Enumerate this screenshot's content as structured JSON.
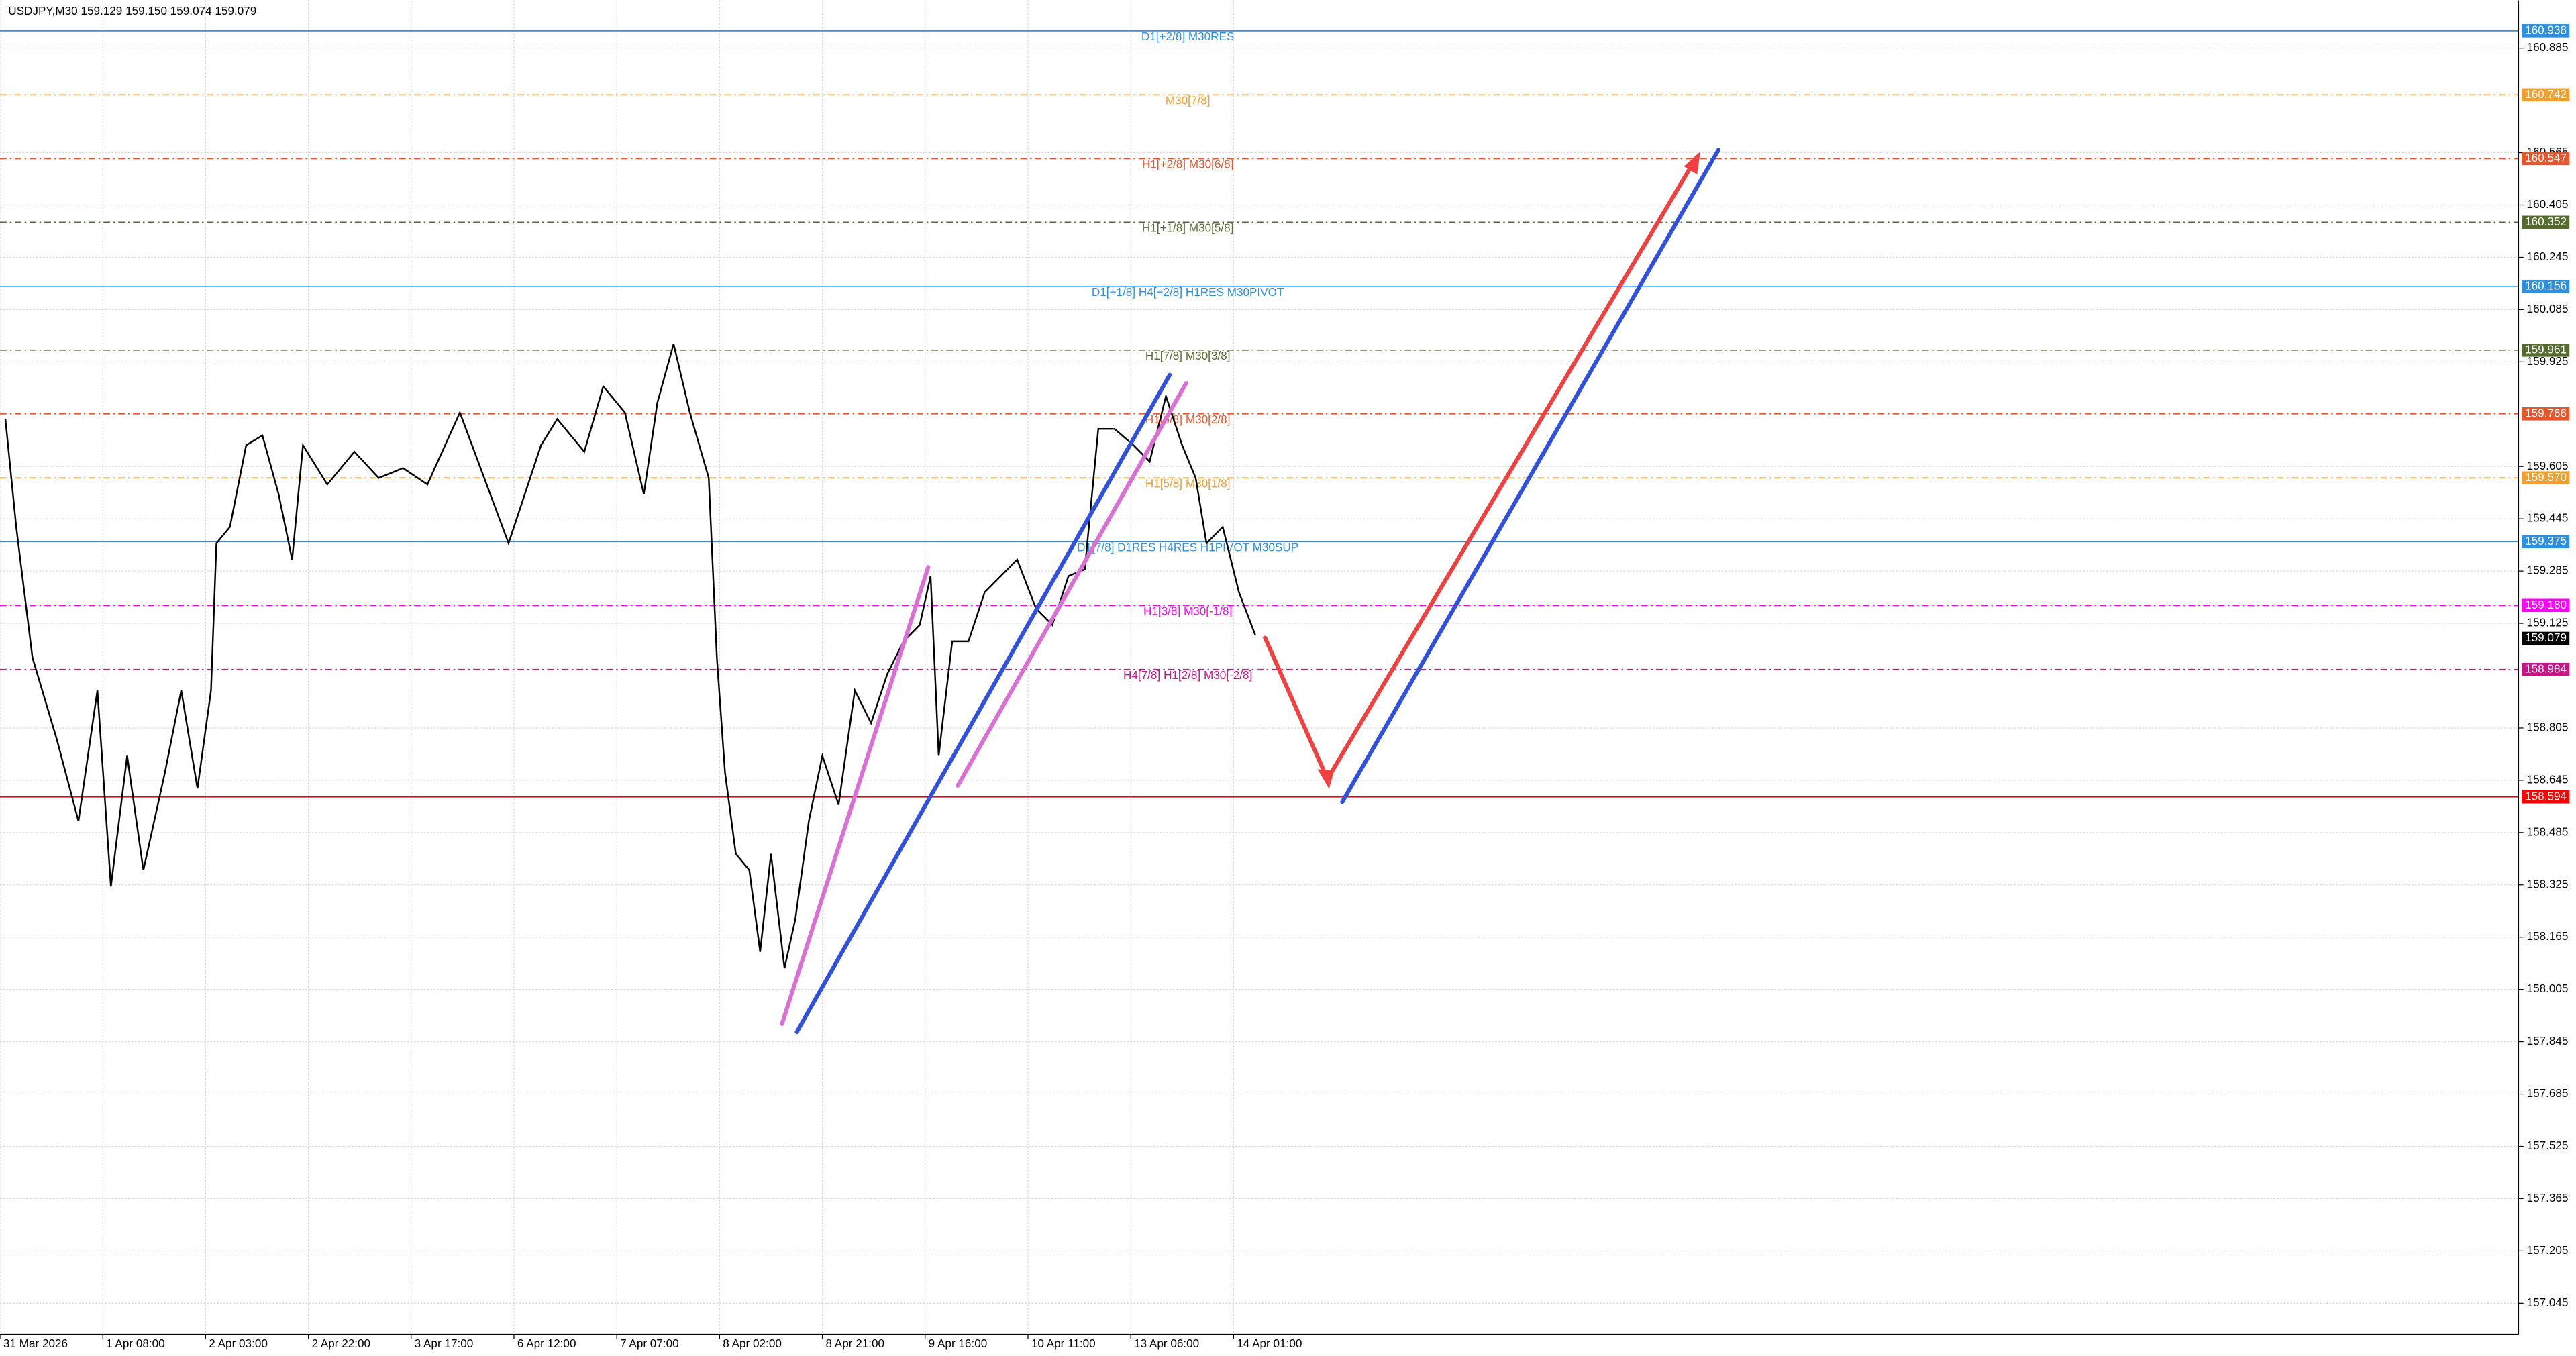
{
  "chart_data": {
    "type": "line",
    "title": "USDJPY,M30  159.129 159.150 159.074 159.079",
    "color": "#000000",
    "x": [
      2,
      6,
      12,
      21,
      29,
      36,
      41,
      47,
      53,
      61,
      67,
      73,
      78,
      80,
      85,
      91,
      97,
      103,
      108,
      112,
      121,
      131,
      140,
      149,
      158,
      170,
      179,
      188,
      194,
      200,
      206,
      216,
      223,
      231,
      238,
      243,
      249,
      255,
      262,
      265,
      268,
      272,
      277,
      281,
      285,
      290,
      294,
      299,
      304,
      310,
      316,
      322,
      328,
      334,
      340,
      344,
      347,
      352,
      358,
      364,
      370,
      376,
      383,
      389,
      395,
      401,
      406,
      412,
      419,
      425,
      431,
      437,
      442,
      446,
      452,
      458,
      464
    ],
    "values": [
      159.75,
      159.42,
      159.02,
      158.77,
      158.52,
      158.92,
      158.32,
      158.72,
      158.37,
      158.67,
      158.92,
      158.62,
      158.92,
      159.37,
      159.42,
      159.67,
      159.7,
      159.52,
      159.32,
      159.67,
      159.55,
      159.65,
      159.57,
      159.6,
      159.55,
      159.77,
      159.57,
      159.37,
      159.52,
      159.67,
      159.75,
      159.65,
      159.85,
      159.77,
      159.52,
      159.8,
      159.98,
      159.77,
      159.57,
      159.02,
      158.67,
      158.42,
      158.37,
      158.12,
      158.42,
      158.07,
      158.22,
      158.52,
      158.72,
      158.57,
      158.92,
      158.82,
      158.97,
      159.07,
      159.12,
      159.27,
      158.72,
      159.07,
      159.07,
      159.22,
      159.27,
      159.32,
      159.17,
      159.12,
      159.27,
      159.29,
      159.72,
      159.72,
      159.67,
      159.62,
      159.82,
      159.67,
      159.57,
      159.37,
      159.42,
      159.22,
      159.09
    ],
    "xlim": [
      0,
      931
    ],
    "xticks": [
      {
        "value": 0,
        "label": "31 Mar 2026"
      },
      {
        "value": 38,
        "label": "1 Apr 08:00"
      },
      {
        "value": 76,
        "label": "2 Apr 03:00"
      },
      {
        "value": 114,
        "label": "2 Apr 22:00"
      },
      {
        "value": 152,
        "label": "3 Apr 17:00"
      },
      {
        "value": 190,
        "label": "6 Apr 12:00"
      },
      {
        "value": 228,
        "label": "7 Apr 07:00"
      },
      {
        "value": 266,
        "label": "8 Apr 02:00"
      },
      {
        "value": 304,
        "label": "8 Apr 21:00"
      },
      {
        "value": 342,
        "label": "9 Apr 16:00"
      },
      {
        "value": 380,
        "label": "10 Apr 11:00"
      },
      {
        "value": 418,
        "label": "13 Apr 06:00"
      },
      {
        "value": 456,
        "label": "14 Apr 01:00"
      }
    ],
    "ylim": [
      156.95,
      161.031
    ],
    "yticks": [
      160.885,
      160.565,
      160.405,
      160.245,
      160.085,
      159.925,
      159.605,
      159.445,
      159.285,
      159.125,
      158.805,
      158.645,
      158.485,
      158.325,
      158.165,
      158.005,
      157.845,
      157.685,
      157.525,
      157.365,
      157.205,
      157.045
    ],
    "grid": true,
    "last": 159.079,
    "levels": [
      {
        "value": 160.938,
        "text": "D1[+2/8] M30RES",
        "color": "#2f8fdf",
        "dash": false
      },
      {
        "value": 160.742,
        "text": "M30[7/8]",
        "color": "#f0a030",
        "dash": true
      },
      {
        "value": 160.547,
        "text": "H1[+2/8] M30[6/8]",
        "color": "#e8552a",
        "dash": true
      },
      {
        "value": 160.352,
        "text": "H1[+1/8] M30[5/8]",
        "color": "#556b2f",
        "dash": true
      },
      {
        "value": 160.156,
        "text": "D1[+1/8] H4[+2/8] H1RES M30PIVOT",
        "color": "#2f8fdf",
        "dash": false
      },
      {
        "value": 159.961,
        "text": "H1[7/8] M30[3/8]",
        "color": "#556b2f",
        "dash": true
      },
      {
        "value": 159.766,
        "text": "H1[6/8] M30[2/8]",
        "color": "#e8552a",
        "dash": true
      },
      {
        "value": 159.57,
        "value_label": "159.570",
        "text": "H1[5/8] M30[1/8]",
        "color": "#f0a030",
        "dash": true
      },
      {
        "value": 159.375,
        "text": "D1[7/8] D1RES H4RES H1PIVOT M30SUP",
        "color": "#2f8fdf",
        "dash": false
      },
      {
        "value": 159.18,
        "value_label": "159.180",
        "text": "H1[3/8] M30[-1/8]",
        "color": "#ff00ff",
        "dash": true
      },
      {
        "value": 158.984,
        "text": "H4[7/8] H1[2/8] M30[-2/8]",
        "color": "#c71585",
        "dash": true
      },
      {
        "value": 158.594,
        "color": "#ff0000",
        "dash": false
      }
    ]
  }
}
